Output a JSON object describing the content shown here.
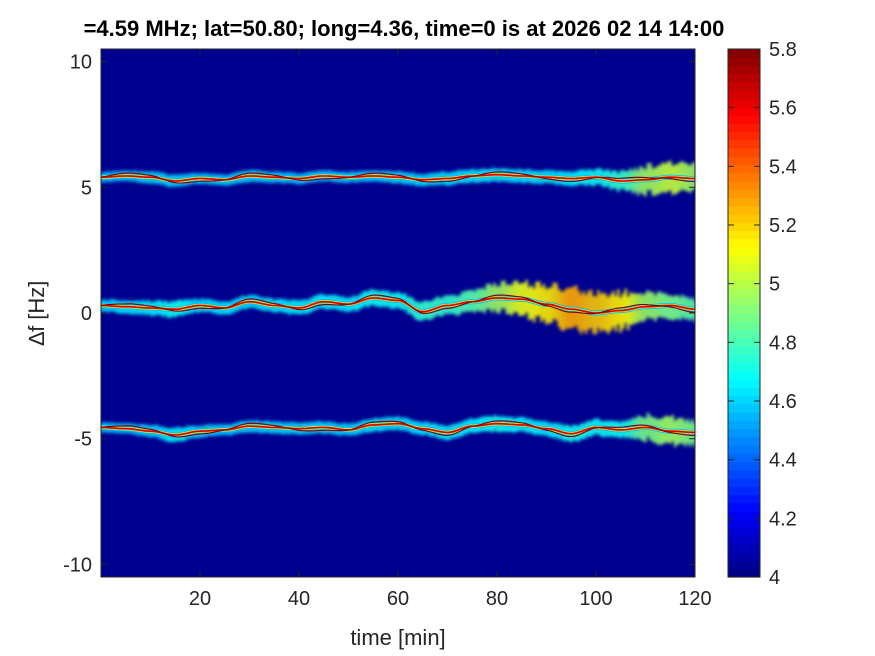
{
  "chart_data": {
    "type": "heatmap",
    "title": "=4.59 MHz;  lat=50.80; long=4.36, time=0 is at 2026 02 14 14:00",
    "xlabel": "time [min]",
    "ylabel": "∆f [Hz]",
    "xlim": [
      0,
      120
    ],
    "ylim": [
      -10.5,
      10.5
    ],
    "xticks": [
      20,
      40,
      60,
      80,
      100,
      120
    ],
    "xtick_labels": [
      "20",
      "40",
      "60",
      "80",
      "100",
      "120"
    ],
    "yticks": [
      10,
      5,
      0,
      -5,
      -10
    ],
    "ytick_labels": [
      "10",
      "5",
      "0",
      "-5",
      "-10"
    ],
    "colorbar": {
      "colormap": "jet",
      "range": [
        4,
        5.8
      ],
      "ticks": [
        "5.8",
        "5.6",
        "5.4",
        "5.2",
        "5",
        "4.8",
        "4.6",
        "4.4",
        "4.2",
        "4"
      ]
    },
    "background_value": 4.0,
    "traces": [
      {
        "name": "",
        "center_hz": 5.3,
        "x": [
          0,
          5,
          10,
          15,
          20,
          25,
          30,
          35,
          40,
          45,
          50,
          55,
          60,
          65,
          70,
          75,
          80,
          85,
          90,
          95,
          100,
          105,
          110,
          115,
          120
        ],
        "y": [
          5.4,
          5.45,
          5.4,
          5.25,
          5.35,
          5.3,
          5.45,
          5.4,
          5.35,
          5.45,
          5.4,
          5.45,
          5.4,
          5.3,
          5.35,
          5.45,
          5.5,
          5.45,
          5.4,
          5.35,
          5.4,
          5.25,
          5.3,
          5.4,
          5.35
        ],
        "spread": [
          0.05,
          0.05,
          0.08,
          0.08,
          0.06,
          0.06,
          0.08,
          0.06,
          0.06,
          0.06,
          0.06,
          0.06,
          0.08,
          0.08,
          0.1,
          0.1,
          0.1,
          0.1,
          0.1,
          0.12,
          0.15,
          0.2,
          0.35,
          0.4,
          0.35
        ]
      },
      {
        "name": "",
        "center_hz": 0.3,
        "x": [
          0,
          5,
          10,
          15,
          20,
          25,
          30,
          35,
          40,
          45,
          50,
          55,
          60,
          65,
          70,
          75,
          80,
          85,
          90,
          95,
          100,
          105,
          110,
          115,
          120
        ],
        "y": [
          0.3,
          0.25,
          0.2,
          0.15,
          0.3,
          0.2,
          0.45,
          0.3,
          0.2,
          0.45,
          0.35,
          0.6,
          0.5,
          0.05,
          0.3,
          0.45,
          0.6,
          0.55,
          0.35,
          0.15,
          0.0,
          0.1,
          0.25,
          0.3,
          0.15
        ],
        "spread": [
          0.08,
          0.1,
          0.12,
          0.15,
          0.1,
          0.1,
          0.1,
          0.1,
          0.12,
          0.12,
          0.12,
          0.15,
          0.15,
          0.2,
          0.2,
          0.25,
          0.35,
          0.45,
          0.5,
          0.6,
          0.55,
          0.5,
          0.35,
          0.3,
          0.25
        ]
      },
      {
        "name": "",
        "center_hz": -4.6,
        "x": [
          0,
          5,
          10,
          15,
          20,
          25,
          30,
          35,
          40,
          45,
          50,
          55,
          60,
          65,
          70,
          75,
          80,
          85,
          90,
          95,
          100,
          105,
          110,
          115,
          120
        ],
        "y": [
          -4.55,
          -4.6,
          -4.7,
          -4.85,
          -4.7,
          -4.65,
          -4.5,
          -4.55,
          -4.6,
          -4.55,
          -4.65,
          -4.45,
          -4.4,
          -4.6,
          -4.75,
          -4.5,
          -4.4,
          -4.45,
          -4.6,
          -4.8,
          -4.55,
          -4.65,
          -4.55,
          -4.7,
          -4.75
        ],
        "spread": [
          0.05,
          0.05,
          0.08,
          0.12,
          0.08,
          0.06,
          0.08,
          0.08,
          0.08,
          0.08,
          0.08,
          0.1,
          0.1,
          0.1,
          0.12,
          0.12,
          0.15,
          0.12,
          0.12,
          0.15,
          0.15,
          0.15,
          0.3,
          0.35,
          0.3
        ]
      }
    ]
  }
}
